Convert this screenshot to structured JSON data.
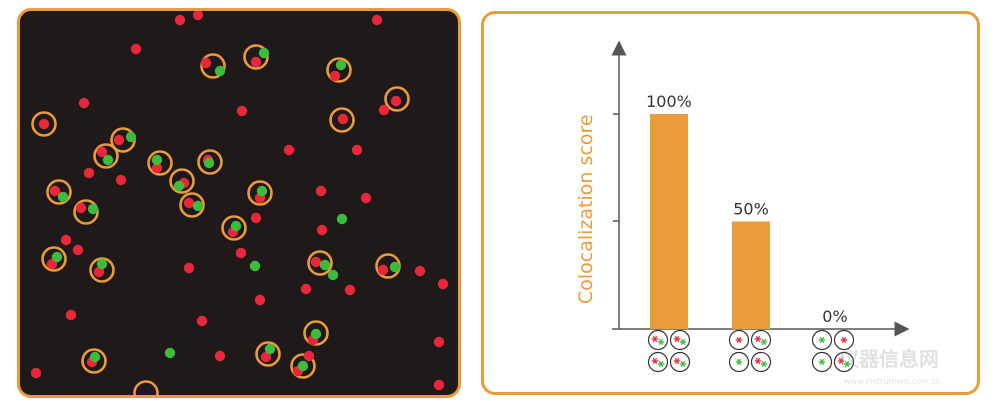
{
  "colors": {
    "frame": "#ea9b3c",
    "background": "#1f1a19",
    "red_dot": "#e8283a",
    "green_dot": "#3dbb3d",
    "bar": "#ea9b3c",
    "axis": "#555555"
  },
  "chart_data": {
    "type": "bar",
    "ylabel": "Colocalization score",
    "ylim": [
      0,
      100
    ],
    "categories": [
      "",
      "",
      ""
    ],
    "values": [
      100,
      50,
      0
    ],
    "data_labels": [
      "100%",
      "50%",
      "0%"
    ],
    "gridlines": false,
    "legend": "none"
  },
  "icons": {
    "category_glyph": "four-cell-colocalization-icon",
    "watermark": "instrument-logo-watermark"
  }
}
